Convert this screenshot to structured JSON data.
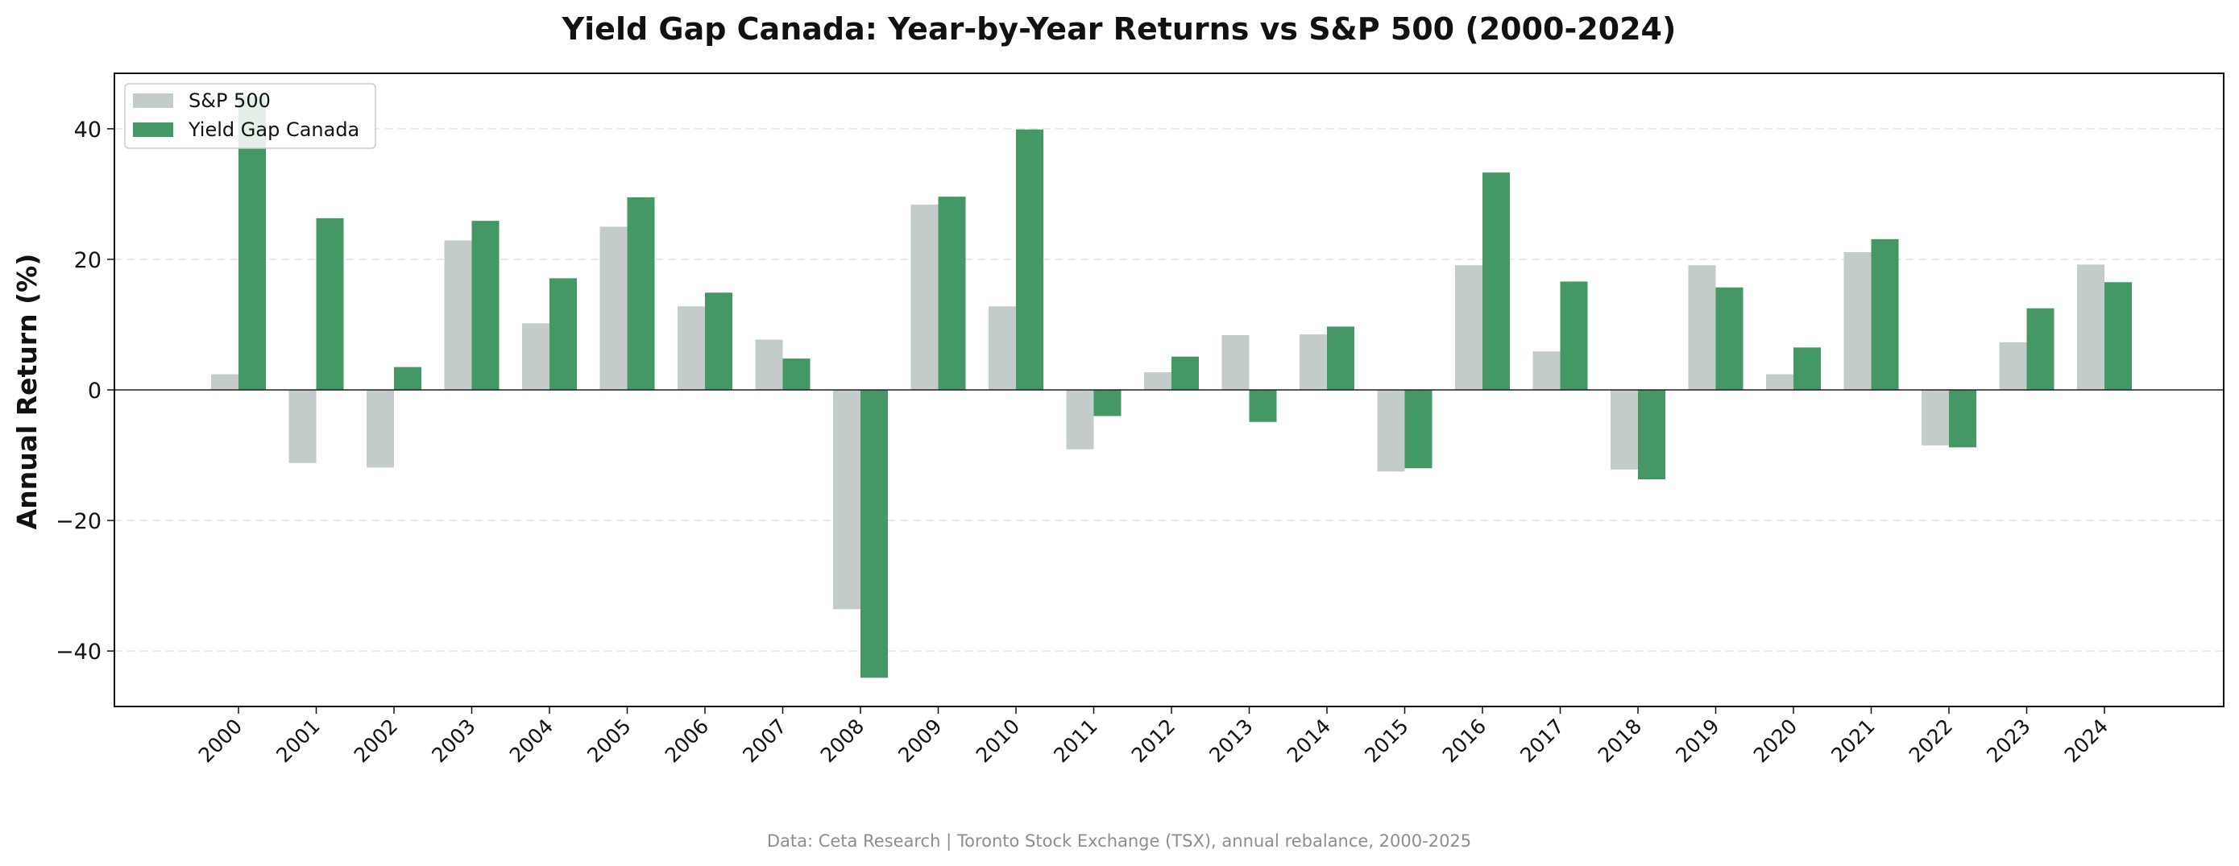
{
  "chart_data": {
    "type": "bar",
    "title": "Yield Gap Canada: Year-by-Year Returns vs S&P 500 (2000-2024)",
    "xlabel": "",
    "ylabel": "Annual Return (%)",
    "ylim": [
      -48.5,
      48.5
    ],
    "yticks": [
      -40,
      -20,
      0,
      20,
      40
    ],
    "ytick_labels": [
      "−40",
      "−20",
      "0",
      "20",
      "40"
    ],
    "grid": "horizontal dashed",
    "legend_position": "upper-left",
    "categories": [
      "2000",
      "2001",
      "2002",
      "2003",
      "2004",
      "2005",
      "2006",
      "2007",
      "2008",
      "2009",
      "2010",
      "2011",
      "2012",
      "2013",
      "2014",
      "2015",
      "2016",
      "2017",
      "2018",
      "2019",
      "2020",
      "2021",
      "2022",
      "2023",
      "2024"
    ],
    "series": [
      {
        "name": "S&P 500",
        "color": "#c3cccb",
        "values": [
          2.4,
          -11.2,
          -11.9,
          22.9,
          10.2,
          25.0,
          12.8,
          7.7,
          -33.6,
          28.4,
          12.8,
          -9.1,
          2.7,
          8.4,
          8.5,
          -12.5,
          19.1,
          5.9,
          -12.2,
          19.1,
          2.4,
          21.1,
          -8.5,
          7.3,
          19.2
        ]
      },
      {
        "name": "Yield Gap Canada",
        "color": "#439866",
        "values": [
          45.0,
          26.3,
          3.5,
          25.9,
          17.1,
          29.5,
          14.9,
          4.8,
          -44.1,
          29.6,
          39.9,
          -4.0,
          5.1,
          -4.9,
          9.7,
          -12.0,
          33.3,
          16.6,
          -13.7,
          15.7,
          6.5,
          23.1,
          -8.8,
          12.5,
          16.5
        ]
      }
    ],
    "footer": "Data: Ceta Research | Toronto Stock Exchange (TSX), annual rebalance, 2000-2025"
  }
}
